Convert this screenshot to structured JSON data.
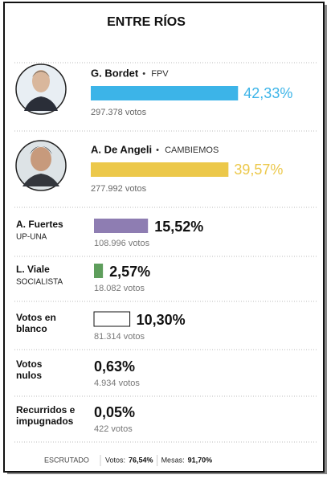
{
  "title": "ENTRE RÍOS",
  "top": [
    {
      "name": "G. Bordet",
      "party": "FPV",
      "percent": 42.33,
      "percent_label": "42,33%",
      "votes": "297.378 votos",
      "color": "#3cb4e8"
    },
    {
      "name": "A. De Angeli",
      "party": "CAMBIEMOS",
      "percent": 39.57,
      "percent_label": "39,57%",
      "votes": "277.992 votos",
      "color": "#ecc84a"
    }
  ],
  "rows": [
    {
      "name": [
        "A. Fuertes"
      ],
      "party": "UP-UNA",
      "percent": 15.52,
      "percent_label": "15,52%",
      "votes": "108.996 votos",
      "color": "#8e7db2"
    },
    {
      "name": [
        "L. Viale"
      ],
      "party": "SOCIALISTA",
      "percent": 2.57,
      "percent_label": "2,57%",
      "votes": "18.082 votos",
      "color": "#5e9e5c"
    },
    {
      "name": [
        "Votos en",
        "blanco"
      ],
      "percent": 10.3,
      "percent_label": "10,30%",
      "votes": "81.314 votos",
      "color": "#ffffff"
    },
    {
      "name": [
        "Votos",
        "nulos"
      ],
      "percent": 0.63,
      "percent_label": "0,63%",
      "votes": "4.934 votos"
    },
    {
      "name": [
        "Recurridos e",
        "impugnados"
      ],
      "percent": 0.05,
      "percent_label": "0,05%",
      "votes": "422 votos"
    }
  ],
  "footer": {
    "status": "ESCRUTADO",
    "votes_label": "Votos:",
    "votes_value": "76,54%",
    "tables_label": "Mesas:",
    "tables_value": "91,70%"
  }
}
